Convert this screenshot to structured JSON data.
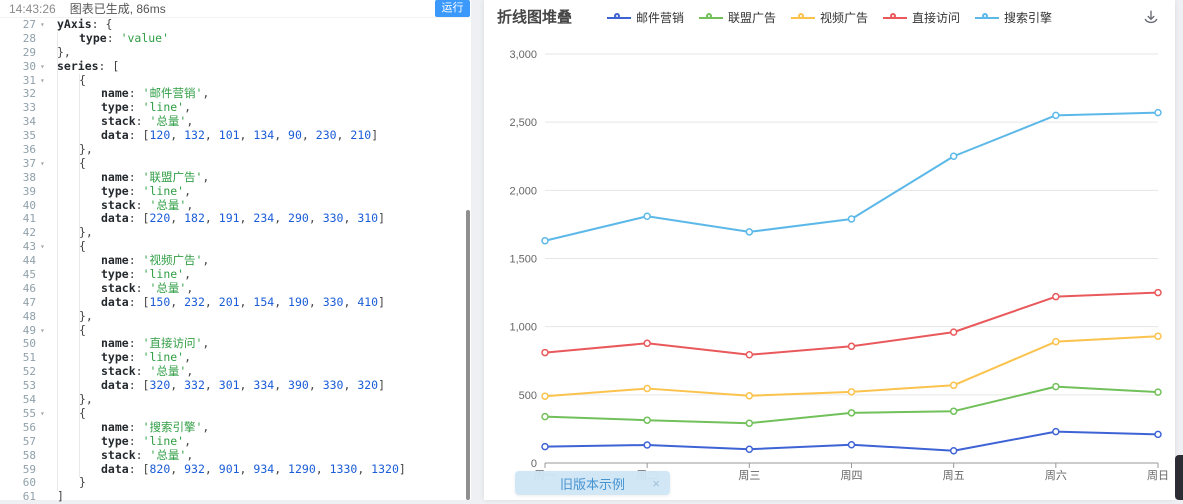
{
  "editor": {
    "status_time": "14:43:26",
    "status_message": "图表已生成, 86ms",
    "run_label": "运行",
    "code_lines": [
      [
        27,
        1,
        1,
        "yAxis: {"
      ],
      [
        28,
        2,
        0,
        "type: 'value'"
      ],
      [
        29,
        1,
        0,
        "},"
      ],
      [
        30,
        1,
        1,
        "series: ["
      ],
      [
        31,
        2,
        1,
        "{"
      ],
      [
        32,
        3,
        0,
        "name: '邮件营销',"
      ],
      [
        33,
        3,
        0,
        "type: 'line',"
      ],
      [
        34,
        3,
        0,
        "stack: '总量',"
      ],
      [
        35,
        3,
        0,
        "data: [120, 132, 101, 134, 90, 230, 210]"
      ],
      [
        36,
        2,
        0,
        "},"
      ],
      [
        37,
        2,
        1,
        "{"
      ],
      [
        38,
        3,
        0,
        "name: '联盟广告',"
      ],
      [
        39,
        3,
        0,
        "type: 'line',"
      ],
      [
        40,
        3,
        0,
        "stack: '总量',"
      ],
      [
        41,
        3,
        0,
        "data: [220, 182, 191, 234, 290, 330, 310]"
      ],
      [
        42,
        2,
        0,
        "},"
      ],
      [
        43,
        2,
        1,
        "{"
      ],
      [
        44,
        3,
        0,
        "name: '视频广告',"
      ],
      [
        45,
        3,
        0,
        "type: 'line',"
      ],
      [
        46,
        3,
        0,
        "stack: '总量',"
      ],
      [
        47,
        3,
        0,
        "data: [150, 232, 201, 154, 190, 330, 410]"
      ],
      [
        48,
        2,
        0,
        "},"
      ],
      [
        49,
        2,
        1,
        "{"
      ],
      [
        50,
        3,
        0,
        "name: '直接访问',"
      ],
      [
        51,
        3,
        0,
        "type: 'line',"
      ],
      [
        52,
        3,
        0,
        "stack: '总量',"
      ],
      [
        53,
        3,
        0,
        "data: [320, 332, 301, 334, 390, 330, 320]"
      ],
      [
        54,
        2,
        0,
        "},"
      ],
      [
        55,
        2,
        1,
        "{"
      ],
      [
        56,
        3,
        0,
        "name: '搜索引擎',"
      ],
      [
        57,
        3,
        0,
        "type: 'line',"
      ],
      [
        58,
        3,
        0,
        "stack: '总量',"
      ],
      [
        59,
        3,
        0,
        "data: [820, 932, 901, 934, 1290, 1330, 1320]"
      ],
      [
        60,
        2,
        0,
        "}"
      ],
      [
        61,
        1,
        0,
        "]"
      ]
    ]
  },
  "chart_panel": {
    "title": "折线图堆叠",
    "notification": {
      "label": "旧版本示例",
      "close": "×"
    }
  },
  "chart_data": {
    "type": "line",
    "stacked": true,
    "title": "折线图堆叠",
    "legend_position": "top",
    "grid": true,
    "categories": [
      "周一",
      "周二",
      "周三",
      "周四",
      "周五",
      "周六",
      "周日"
    ],
    "series": [
      {
        "name": "邮件营销",
        "color": "#3e63d5",
        "values": [
          120,
          132,
          101,
          134,
          90,
          230,
          210
        ]
      },
      {
        "name": "联盟广告",
        "color": "#71c05a",
        "values": [
          220,
          182,
          191,
          234,
          290,
          330,
          310
        ]
      },
      {
        "name": "视频广告",
        "color": "#fbc34d",
        "values": [
          150,
          232,
          201,
          154,
          190,
          330,
          410
        ]
      },
      {
        "name": "直接访问",
        "color": "#e9595c",
        "values": [
          320,
          332,
          301,
          334,
          390,
          330,
          320
        ]
      },
      {
        "name": "搜索引擎",
        "color": "#5cb8e8",
        "values": [
          820,
          932,
          901,
          934,
          1290,
          1330,
          1320
        ]
      }
    ],
    "ylim": [
      0,
      3000
    ],
    "y_ticks": [
      0,
      500,
      1000,
      1500,
      2000,
      2500,
      3000
    ],
    "y_tick_labels": [
      "0",
      "500",
      "1,000",
      "1,500",
      "2,000",
      "2,500",
      "3,000"
    ],
    "colors": {
      "grid_line": "#e6e6e6",
      "axis_line": "#999999",
      "tick_label": "#666666"
    }
  }
}
